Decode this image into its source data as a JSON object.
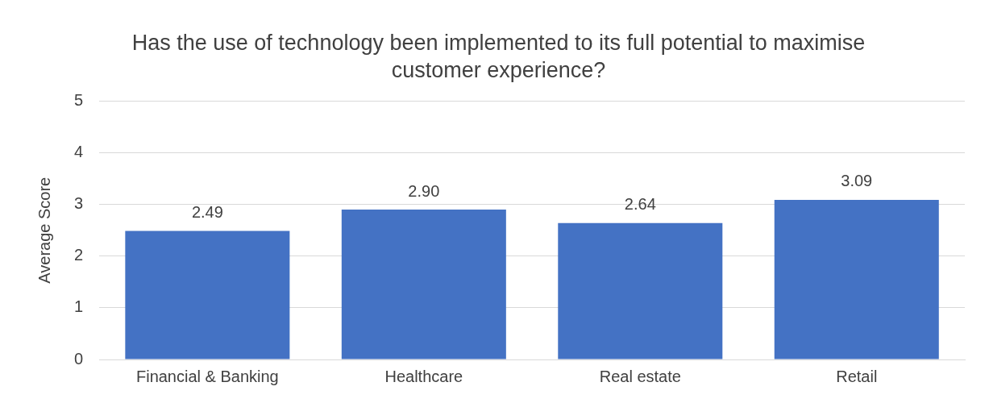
{
  "chart_data": {
    "type": "bar",
    "title": "Has the use of technology been implemented to its full potential to maximise customer experience?",
    "ylabel": "Average Score",
    "categories": [
      "Financial & Banking",
      "Healthcare",
      "Real estate",
      "Retail"
    ],
    "values": [
      2.49,
      2.9,
      2.64,
      3.09
    ],
    "value_labels": [
      "2.49",
      "2.90",
      "2.64",
      "3.09"
    ],
    "color": "#4472c4",
    "ylim": [
      0,
      5
    ],
    "yticks": [
      0,
      1,
      2,
      3,
      4,
      5
    ],
    "grid": "y",
    "legend": false
  }
}
